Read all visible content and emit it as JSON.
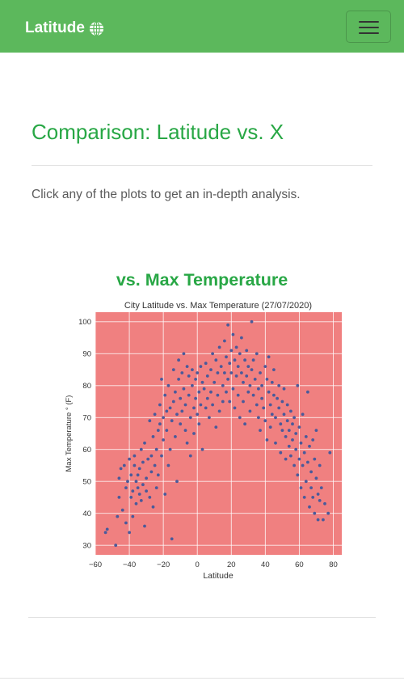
{
  "navbar": {
    "brand": "Latitude",
    "brand_icon": "globe-icon",
    "menu_icon": "hamburger-icon",
    "color": "#5cb85c"
  },
  "main": {
    "title": "Comparison: Latitude vs. X",
    "lead": "Click any of the plots to get an in-depth analysis.",
    "plot_heading": "vs. Max Temperature",
    "accent": "#28a745"
  },
  "chart_data": {
    "type": "scatter",
    "title": "City Latitude vs. Max Temperature (27/07/2020)",
    "xlabel": "Latitude",
    "ylabel": "Max Temperature ° (F)",
    "xlim": [
      -60,
      85
    ],
    "ylim": [
      27,
      103
    ],
    "xticks": [
      -60,
      -40,
      -20,
      0,
      20,
      40,
      60,
      80
    ],
    "yticks": [
      30,
      40,
      50,
      60,
      70,
      80,
      90,
      100
    ],
    "grid": true,
    "background": "#f08080",
    "point_color": "#4a5a9a",
    "points": [
      [
        -54,
        34
      ],
      [
        -53,
        35
      ],
      [
        -48,
        30
      ],
      [
        -47,
        39
      ],
      [
        -46,
        45
      ],
      [
        -46,
        51
      ],
      [
        -45,
        54
      ],
      [
        -44,
        41
      ],
      [
        -43,
        55
      ],
      [
        -42,
        48
      ],
      [
        -42,
        37
      ],
      [
        -41,
        50
      ],
      [
        -40,
        57
      ],
      [
        -40,
        34
      ],
      [
        -39,
        45
      ],
      [
        -39,
        52
      ],
      [
        -38,
        47
      ],
      [
        -38,
        39
      ],
      [
        -37,
        55
      ],
      [
        -37,
        58
      ],
      [
        -36,
        50
      ],
      [
        -36,
        43
      ],
      [
        -35,
        48
      ],
      [
        -35,
        52
      ],
      [
        -34,
        46
      ],
      [
        -34,
        54
      ],
      [
        -33,
        60
      ],
      [
        -33,
        44
      ],
      [
        -32,
        49
      ],
      [
        -32,
        56
      ],
      [
        -31,
        62
      ],
      [
        -31,
        36
      ],
      [
        -30,
        51
      ],
      [
        -30,
        47
      ],
      [
        -29,
        57
      ],
      [
        -28,
        45
      ],
      [
        -28,
        69
      ],
      [
        -27,
        53
      ],
      [
        -27,
        58
      ],
      [
        -26,
        42
      ],
      [
        -26,
        64
      ],
      [
        -25,
        71
      ],
      [
        -25,
        55
      ],
      [
        -24,
        48
      ],
      [
        -24,
        60
      ],
      [
        -23,
        66
      ],
      [
        -23,
        52
      ],
      [
        -22,
        74
      ],
      [
        -22,
        68
      ],
      [
        -21,
        58
      ],
      [
        -21,
        82
      ],
      [
        -20,
        70
      ],
      [
        -20,
        63
      ],
      [
        -19,
        77
      ],
      [
        -19,
        46
      ],
      [
        -18,
        72
      ],
      [
        -18,
        66
      ],
      [
        -17,
        55
      ],
      [
        -17,
        80
      ],
      [
        -16,
        73
      ],
      [
        -16,
        60
      ],
      [
        -15,
        32
      ],
      [
        -15,
        69
      ],
      [
        -14,
        85
      ],
      [
        -14,
        75
      ],
      [
        -13,
        78
      ],
      [
        -13,
        64
      ],
      [
        -12,
        71
      ],
      [
        -12,
        50
      ],
      [
        -11,
        88
      ],
      [
        -11,
        82
      ],
      [
        -10,
        76
      ],
      [
        -10,
        68
      ],
      [
        -9,
        84
      ],
      [
        -9,
        72
      ],
      [
        -8,
        90
      ],
      [
        -8,
        79
      ],
      [
        -7,
        66
      ],
      [
        -7,
        74
      ],
      [
        -6,
        86
      ],
      [
        -6,
        62
      ],
      [
        -5,
        83
      ],
      [
        -5,
        77
      ],
      [
        -4,
        70
      ],
      [
        -4,
        58
      ],
      [
        -3,
        85
      ],
      [
        -3,
        80
      ],
      [
        -2,
        73
      ],
      [
        -2,
        65
      ],
      [
        -1,
        82
      ],
      [
        -1,
        76
      ],
      [
        0,
        84
      ],
      [
        0,
        71
      ],
      [
        1,
        68
      ],
      [
        1,
        78
      ],
      [
        2,
        86
      ],
      [
        2,
        74
      ],
      [
        3,
        81
      ],
      [
        3,
        60
      ],
      [
        4,
        79
      ],
      [
        5,
        87
      ],
      [
        5,
        73
      ],
      [
        6,
        83
      ],
      [
        6,
        76
      ],
      [
        7,
        70
      ],
      [
        8,
        85
      ],
      [
        8,
        78
      ],
      [
        9,
        90
      ],
      [
        9,
        74
      ],
      [
        10,
        81
      ],
      [
        11,
        88
      ],
      [
        11,
        67
      ],
      [
        12,
        84
      ],
      [
        12,
        77
      ],
      [
        13,
        92
      ],
      [
        13,
        72
      ],
      [
        14,
        86
      ],
      [
        15,
        80
      ],
      [
        15,
        75
      ],
      [
        16,
        94
      ],
      [
        16,
        84
      ],
      [
        17,
        89
      ],
      [
        17,
        78
      ],
      [
        18,
        99
      ],
      [
        18,
        82
      ],
      [
        19,
        87
      ],
      [
        19,
        75
      ],
      [
        20,
        91
      ],
      [
        20,
        84
      ],
      [
        21,
        96
      ],
      [
        21,
        79
      ],
      [
        22,
        88
      ],
      [
        22,
        73
      ],
      [
        23,
        83
      ],
      [
        23,
        92
      ],
      [
        24,
        86
      ],
      [
        24,
        77
      ],
      [
        25,
        90
      ],
      [
        25,
        70
      ],
      [
        26,
        84
      ],
      [
        26,
        95
      ],
      [
        27,
        81
      ],
      [
        27,
        75
      ],
      [
        28,
        88
      ],
      [
        28,
        68
      ],
      [
        29,
        83
      ],
      [
        29,
        91
      ],
      [
        30,
        86
      ],
      [
        30,
        78
      ],
      [
        31,
        72
      ],
      [
        31,
        80
      ],
      [
        32,
        100
      ],
      [
        32,
        85
      ],
      [
        33,
        77
      ],
      [
        33,
        88
      ],
      [
        34,
        82
      ],
      [
        35,
        74
      ],
      [
        35,
        90
      ],
      [
        36,
        79
      ],
      [
        36,
        70
      ],
      [
        37,
        84
      ],
      [
        37,
        66
      ],
      [
        38,
        80
      ],
      [
        38,
        76
      ],
      [
        39,
        73
      ],
      [
        40,
        86
      ],
      [
        40,
        69
      ],
      [
        41,
        82
      ],
      [
        41,
        63
      ],
      [
        42,
        78
      ],
      [
        42,
        89
      ],
      [
        43,
        74
      ],
      [
        43,
        67
      ],
      [
        44,
        81
      ],
      [
        44,
        71
      ],
      [
        45,
        77
      ],
      [
        45,
        85
      ],
      [
        46,
        70
      ],
      [
        46,
        62
      ],
      [
        47,
        76
      ],
      [
        48,
        73
      ],
      [
        48,
        80
      ],
      [
        49,
        68
      ],
      [
        49,
        59
      ],
      [
        50,
        75
      ],
      [
        50,
        66
      ],
      [
        51,
        71
      ],
      [
        51,
        79
      ],
      [
        52,
        64
      ],
      [
        52,
        57
      ],
      [
        53,
        69
      ],
      [
        53,
        74
      ],
      [
        54,
        61
      ],
      [
        54,
        66
      ],
      [
        55,
        72
      ],
      [
        55,
        58
      ],
      [
        56,
        63
      ],
      [
        56,
        68
      ],
      [
        57,
        55
      ],
      [
        57,
        70
      ],
      [
        58,
        60
      ],
      [
        58,
        65
      ],
      [
        59,
        52
      ],
      [
        59,
        80
      ],
      [
        60,
        67
      ],
      [
        60,
        57
      ],
      [
        61,
        62
      ],
      [
        61,
        48
      ],
      [
        62,
        71
      ],
      [
        62,
        55
      ],
      [
        63,
        59
      ],
      [
        63,
        45
      ],
      [
        64,
        64
      ],
      [
        64,
        50
      ],
      [
        65,
        78
      ],
      [
        65,
        56
      ],
      [
        66,
        61
      ],
      [
        66,
        42
      ],
      [
        67,
        53
      ],
      [
        67,
        48
      ],
      [
        68,
        63
      ],
      [
        68,
        45
      ],
      [
        69,
        57
      ],
      [
        69,
        40
      ],
      [
        70,
        51
      ],
      [
        70,
        66
      ],
      [
        71,
        46
      ],
      [
        71,
        38
      ],
      [
        72,
        55
      ],
      [
        72,
        44
      ],
      [
        73,
        48
      ],
      [
        74,
        38
      ],
      [
        75,
        43
      ],
      [
        77,
        40
      ],
      [
        78,
        59
      ]
    ]
  }
}
